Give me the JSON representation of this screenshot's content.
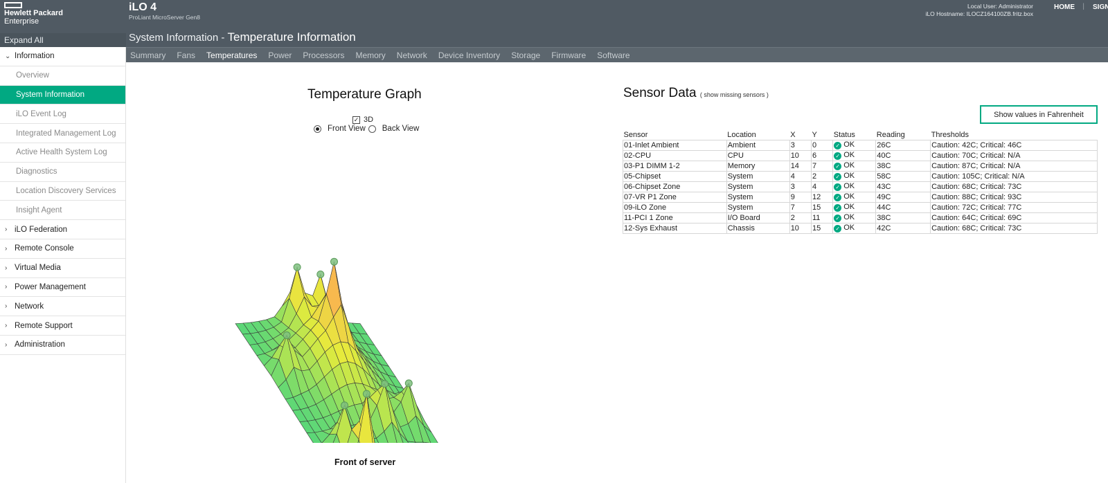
{
  "brand": {
    "line1": "Hewlett Packard",
    "line2": "Enterprise"
  },
  "header": {
    "product": "iLO 4",
    "model": "ProLiant MicroServer Gen8",
    "title_prefix": "System Information - ",
    "title_page": "Temperature Information",
    "local_user": "Local User: Administrator",
    "hostname": "iLO Hostname: ILOCZ164100ZB.fritz.box",
    "home": "HOME",
    "sign_out": "SIGN OUT"
  },
  "sidebar": {
    "expand_all": "Expand All",
    "items": [
      {
        "label": "Information",
        "level": "top",
        "chevron": "⌄"
      },
      {
        "label": "Overview",
        "level": "sub"
      },
      {
        "label": "System Information",
        "level": "sub",
        "active": true
      },
      {
        "label": "iLO Event Log",
        "level": "sub"
      },
      {
        "label": "Integrated Management Log",
        "level": "sub"
      },
      {
        "label": "Active Health System Log",
        "level": "sub"
      },
      {
        "label": "Diagnostics",
        "level": "sub"
      },
      {
        "label": "Location Discovery Services",
        "level": "sub"
      },
      {
        "label": "Insight Agent",
        "level": "sub"
      },
      {
        "label": "iLO Federation",
        "level": "top",
        "chevron": "›"
      },
      {
        "label": "Remote Console",
        "level": "top",
        "chevron": "›"
      },
      {
        "label": "Virtual Media",
        "level": "top",
        "chevron": "›"
      },
      {
        "label": "Power Management",
        "level": "top",
        "chevron": "›"
      },
      {
        "label": "Network",
        "level": "top",
        "chevron": "›"
      },
      {
        "label": "Remote Support",
        "level": "top",
        "chevron": "›"
      },
      {
        "label": "Administration",
        "level": "top",
        "chevron": "›"
      }
    ]
  },
  "tabs": [
    "Summary",
    "Fans",
    "Temperatures",
    "Power",
    "Processors",
    "Memory",
    "Network",
    "Device Inventory",
    "Storage",
    "Firmware",
    "Software"
  ],
  "active_tab": "Temperatures",
  "graph": {
    "title": "Temperature Graph",
    "option_3d": "3D",
    "option_3d_checked": true,
    "front_view": "Front View",
    "back_view": "Back View",
    "front_selected": true,
    "footer": "Front of server"
  },
  "sensor": {
    "title": "Sensor Data",
    "missing_link": "( show missing sensors )",
    "fahrenheit_button": "Show values in Fahrenheit",
    "columns": [
      "Sensor",
      "Location",
      "X",
      "Y",
      "Status",
      "Reading",
      "Thresholds"
    ],
    "rows": [
      [
        "01-Inlet Ambient",
        "Ambient",
        "3",
        "0",
        "OK",
        "26C",
        "Caution: 42C; Critical: 46C"
      ],
      [
        "02-CPU",
        "CPU",
        "10",
        "6",
        "OK",
        "40C",
        "Caution: 70C; Critical: N/A"
      ],
      [
        "03-P1 DIMM 1-2",
        "Memory",
        "14",
        "7",
        "OK",
        "38C",
        "Caution: 87C; Critical: N/A"
      ],
      [
        "05-Chipset",
        "System",
        "4",
        "2",
        "OK",
        "58C",
        "Caution: 105C; Critical: N/A"
      ],
      [
        "06-Chipset Zone",
        "System",
        "3",
        "4",
        "OK",
        "43C",
        "Caution: 68C; Critical: 73C"
      ],
      [
        "07-VR P1 Zone",
        "System",
        "9",
        "12",
        "OK",
        "49C",
        "Caution: 88C; Critical: 93C"
      ],
      [
        "09-iLO Zone",
        "System",
        "7",
        "15",
        "OK",
        "44C",
        "Caution: 72C; Critical: 77C"
      ],
      [
        "11-PCI 1 Zone",
        "I/O Board",
        "2",
        "11",
        "OK",
        "38C",
        "Caution: 64C; Critical: 69C"
      ],
      [
        "12-Sys Exhaust",
        "Chassis",
        "10",
        "15",
        "OK",
        "42C",
        "Caution: 68C; Critical: 73C"
      ]
    ]
  },
  "colors": {
    "accent": "#01a982",
    "header": "#505a63",
    "tabbar": "#5c666e"
  },
  "icons": {
    "status_ok": "check-circle-icon",
    "checkbox": "checkbox-icon"
  }
}
